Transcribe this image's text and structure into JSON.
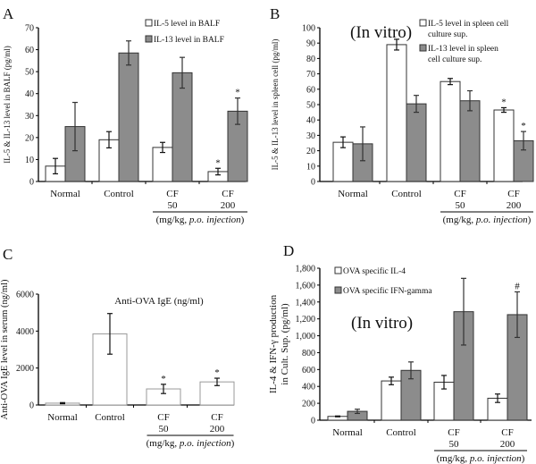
{
  "chart_data": [
    {
      "panel": "A",
      "type": "bar",
      "ylabel": "IL-5 & IL-13 level  in BALF (pg/ml)",
      "ylim": [
        0,
        70
      ],
      "yticks": [
        "0",
        "10",
        "20",
        "30",
        "40",
        "50",
        "60",
        "70"
      ],
      "categories": [
        "Normal",
        "Control",
        "CF",
        "CF"
      ],
      "doses": [
        "50",
        "200"
      ],
      "dose_unit_prefix": "(mg/kg, ",
      "dose_unit_italic": "p.o. injection",
      "dose_unit_suffix": ")",
      "series": [
        {
          "name": "IL-5 level in BALF",
          "color": "#ffffff",
          "values": [
            7,
            19,
            15.5,
            4.5
          ],
          "errors": [
            3.5,
            3.7,
            2.3,
            1.5
          ],
          "marks": [
            "",
            "",
            "",
            "*"
          ]
        },
        {
          "name": "IL-13 level in BALF",
          "color": "#8c8c8c",
          "values": [
            25,
            58.5,
            49.5,
            32
          ],
          "errors": [
            11,
            5.5,
            7,
            6
          ],
          "marks": [
            "",
            "",
            "",
            "*"
          ]
        }
      ]
    },
    {
      "panel": "B",
      "type": "bar",
      "note": "(In vitro)",
      "ylabel": "IL-5 & IL-13 level  in spleen cell (pg/ml)",
      "ylim": [
        0,
        100
      ],
      "yticks": [
        "0",
        "10",
        "20",
        "30",
        "40",
        "50",
        "60",
        "70",
        "80",
        "90",
        "100"
      ],
      "categories": [
        "Normal",
        "Control",
        "CF",
        "CF"
      ],
      "doses": [
        "50",
        "200"
      ],
      "dose_unit_prefix": "(mg/kg, ",
      "dose_unit_italic": "p.o. injection",
      "dose_unit_suffix": ")",
      "series": [
        {
          "name": "IL-5 level in spleen cell",
          "name2": "culture sup.",
          "color": "#ffffff",
          "values": [
            25.5,
            89,
            65,
            46.5
          ],
          "errors": [
            3.5,
            3.5,
            2,
            1.5
          ],
          "marks": [
            "",
            "",
            "",
            "*"
          ]
        },
        {
          "name": "IL-13 level in spleen",
          "name2": "cell culture sup.",
          "color": "#8c8c8c",
          "values": [
            24.5,
            50.5,
            52.5,
            26.5
          ],
          "errors": [
            11,
            5.5,
            6.5,
            6
          ],
          "marks": [
            "",
            "",
            "",
            "*"
          ]
        }
      ]
    },
    {
      "panel": "C",
      "type": "bar",
      "title": "Anti-OVA IgE (ng/ml)",
      "ylabel": "Anti-OVA IgE level  in serum (ng/ml)",
      "ylim": [
        0,
        6000
      ],
      "yticks": [
        "0",
        "2000",
        "4000",
        "6000"
      ],
      "categories": [
        "Normal",
        "Control",
        "CF",
        "CF"
      ],
      "doses": [
        "50",
        "200"
      ],
      "dose_unit_prefix": "(mg/kg, ",
      "dose_unit_italic": "p.o. injection",
      "dose_unit_suffix": ")",
      "series": [
        {
          "name": "Anti-OVA IgE",
          "color": "#ffffff",
          "values": [
            100,
            3850,
            870,
            1250
          ],
          "errors": [
            30,
            1100,
            250,
            200
          ],
          "marks": [
            "",
            "",
            "*",
            "*"
          ]
        }
      ]
    },
    {
      "panel": "D",
      "type": "bar",
      "note": "(In vitro)",
      "ylabel": "IL-4 & IFN-γ production",
      "ylabel2": "in Cult. Sup.  (pg/ml)",
      "ylim": [
        0,
        1800
      ],
      "yticks": [
        "0",
        "200",
        "400",
        "600",
        "800",
        "1,000",
        "1,200",
        "1,400",
        "1,600",
        "1,800"
      ],
      "categories": [
        "Normal",
        "Control",
        "CF",
        "CF"
      ],
      "doses": [
        "50",
        "200"
      ],
      "dose_unit_prefix": "(mg/kg, ",
      "dose_unit_italic": "p.o. injection",
      "dose_unit_suffix": ")",
      "series": [
        {
          "name": "OVA specific IL-4",
          "color": "#ffffff",
          "values": [
            45,
            465,
            450,
            260
          ],
          "errors": [
            5,
            45,
            80,
            50
          ],
          "marks": [
            "",
            "",
            "",
            ""
          ]
        },
        {
          "name": "OVA specific IFN-gamma",
          "color": "#8c8c8c",
          "values": [
            105,
            590,
            1285,
            1250
          ],
          "errors": [
            25,
            100,
            395,
            270
          ],
          "marks": [
            "",
            "",
            "",
            "#"
          ]
        }
      ]
    }
  ]
}
